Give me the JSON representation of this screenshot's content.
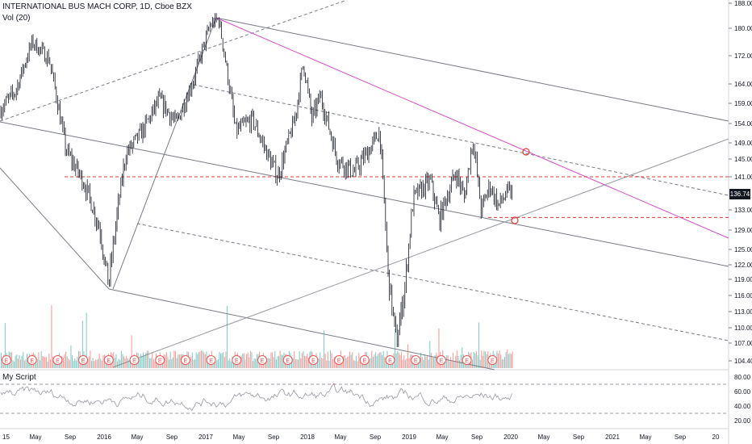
{
  "header": {
    "symbol_title": "INTERNATIONAL BUS MACH CORP, 1D, Cboe BZX",
    "volume_label": "Vol (20)"
  },
  "indicator": {
    "title": "My Script",
    "axis_ticks": [
      "80.00",
      "60.00",
      "40.00",
      "20.00"
    ]
  },
  "chart_data": {
    "type": "line",
    "title": "",
    "price_axis_ticks": [
      "188.00",
      "180.00",
      "172.00",
      "164.00",
      "159.00",
      "154.00",
      "149.00",
      "145.00",
      "141.00",
      "133.00",
      "129.00",
      "125.00",
      "122.00",
      "119.00",
      "116.00",
      "113.00",
      "110.00",
      "107.00",
      "104.40"
    ],
    "current_price": "136.74",
    "time_axis_ticks": [
      "15",
      "May",
      "Sep",
      "2016",
      "May",
      "Sep",
      "2017",
      "May",
      "Sep",
      "2018",
      "May",
      "Sep",
      "2019",
      "May",
      "Sep",
      "2020",
      "May",
      "Sep",
      "2021",
      "May",
      "Sep",
      "20"
    ],
    "price_series_points": [
      [
        "2015-01",
        157
      ],
      [
        "2015-03",
        162
      ],
      [
        "2015-05",
        176
      ],
      [
        "2015-07",
        171
      ],
      [
        "2015-09",
        147
      ],
      [
        "2015-11",
        140
      ],
      [
        "2016-01",
        129
      ],
      [
        "2016-02",
        118
      ],
      [
        "2016-04",
        146
      ],
      [
        "2016-06",
        152
      ],
      [
        "2016-08",
        160
      ],
      [
        "2016-10",
        154
      ],
      [
        "2016-12",
        165
      ],
      [
        "2017-02",
        181
      ],
      [
        "2017-03",
        183
      ],
      [
        "2017-05",
        152
      ],
      [
        "2017-07",
        155
      ],
      [
        "2017-09",
        145
      ],
      [
        "2017-10",
        141
      ],
      [
        "2017-12",
        155
      ],
      [
        "2018-01",
        170
      ],
      [
        "2018-02",
        155
      ],
      [
        "2018-03",
        161
      ],
      [
        "2018-05",
        145
      ],
      [
        "2018-07",
        142
      ],
      [
        "2018-09",
        148
      ],
      [
        "2018-10",
        152
      ],
      [
        "2018-11",
        120
      ],
      [
        "2018-12",
        107
      ],
      [
        "2019-01",
        118
      ],
      [
        "2019-02",
        136
      ],
      [
        "2019-04",
        140
      ],
      [
        "2019-05",
        131
      ],
      [
        "2019-07",
        142
      ],
      [
        "2019-08",
        136
      ],
      [
        "2019-09",
        150
      ],
      [
        "2019-10",
        133
      ],
      [
        "2019-11",
        139
      ],
      [
        "2019-12",
        134
      ],
      [
        "2020-01",
        137
      ]
    ],
    "reference_levels": [
      {
        "price": 141.0,
        "color": "#e53935",
        "style": "dashed"
      },
      {
        "price": 131.5,
        "color": "#e53935",
        "style": "dashed"
      }
    ],
    "colors": {
      "candles": "#131722",
      "trendline_magenta": "#d54fc8",
      "channel_lines": "#787b86",
      "volume_up": "#26a69a",
      "volume_down": "#ef5350",
      "earnings_marker": "#ef5350",
      "indicator_line": "#9598a1",
      "indicator_overbought": "#e53935",
      "indicator_oversold": "#26a69a"
    },
    "earnings_marker_glyph": "E",
    "grid": false,
    "legend": "top-left"
  }
}
